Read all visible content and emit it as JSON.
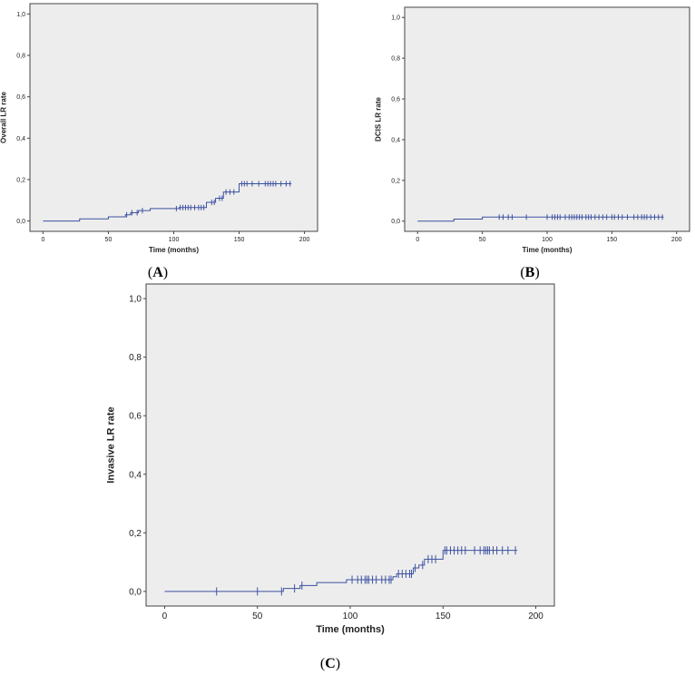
{
  "colors": {
    "plot_bg": "#ededed",
    "line": "#3d52a1",
    "axis": "#444444"
  },
  "panels": [
    {
      "id": "A",
      "open": "(",
      "letter": "A",
      "close": ")"
    },
    {
      "id": "B",
      "open": "(",
      "letter": "B",
      "close": ")"
    },
    {
      "id": "C",
      "open": "(",
      "letter": "C",
      "close": ")"
    }
  ],
  "chart_data": [
    {
      "panel": "A",
      "type": "line",
      "xlabel": "Time (months)",
      "ylabel": "Overall LR rate",
      "xlim": [
        -10,
        210
      ],
      "ylim": [
        -0.05,
        1.05
      ],
      "x_ticks": [
        0,
        50,
        100,
        150,
        200
      ],
      "x_tick_labels": [
        "0",
        "50",
        "100",
        "150",
        "200"
      ],
      "y_ticks": [
        0,
        0.2,
        0.4,
        0.6,
        0.8,
        1.0
      ],
      "y_tick_labels": [
        "0,0",
        "0,2",
        "0,4",
        "0,6",
        "0,8",
        "1,0"
      ],
      "grid": false,
      "steps": [
        [
          0,
          0
        ],
        [
          28,
          0.01
        ],
        [
          50,
          0.02
        ],
        [
          63,
          0.03
        ],
        [
          67,
          0.04
        ],
        [
          73,
          0.05
        ],
        [
          82,
          0.06
        ],
        [
          104,
          0.065
        ],
        [
          125,
          0.09
        ],
        [
          132,
          0.11
        ],
        [
          138,
          0.14
        ],
        [
          150,
          0.18
        ],
        [
          190,
          0.18
        ]
      ],
      "censored": [
        [
          64,
          0.03
        ],
        [
          68,
          0.04
        ],
        [
          72,
          0.04
        ],
        [
          76,
          0.05
        ],
        [
          102,
          0.06
        ],
        [
          105,
          0.065
        ],
        [
          107,
          0.065
        ],
        [
          109,
          0.065
        ],
        [
          111,
          0.065
        ],
        [
          113,
          0.065
        ],
        [
          116,
          0.065
        ],
        [
          119,
          0.065
        ],
        [
          121,
          0.065
        ],
        [
          123,
          0.065
        ],
        [
          129,
          0.09
        ],
        [
          131,
          0.09
        ],
        [
          135,
          0.11
        ],
        [
          137,
          0.11
        ],
        [
          140,
          0.14
        ],
        [
          143,
          0.14
        ],
        [
          146,
          0.14
        ],
        [
          152,
          0.18
        ],
        [
          154,
          0.18
        ],
        [
          156,
          0.18
        ],
        [
          160,
          0.18
        ],
        [
          165,
          0.18
        ],
        [
          170,
          0.18
        ],
        [
          172,
          0.18
        ],
        [
          174,
          0.18
        ],
        [
          176,
          0.18
        ],
        [
          178,
          0.18
        ],
        [
          182,
          0.18
        ],
        [
          186,
          0.18
        ],
        [
          189,
          0.18
        ]
      ]
    },
    {
      "panel": "B",
      "type": "line",
      "xlabel": "Time (months)",
      "ylabel": "DCIS LR rate",
      "xlim": [
        -10,
        210
      ],
      "ylim": [
        -0.05,
        1.05
      ],
      "x_ticks": [
        0,
        50,
        100,
        150,
        200
      ],
      "x_tick_labels": [
        "0",
        "50",
        "100",
        "150",
        "200"
      ],
      "y_ticks": [
        0,
        0.2,
        0.4,
        0.6,
        0.8,
        1.0
      ],
      "y_tick_labels": [
        "0,0",
        "0,2",
        "0,4",
        "0,6",
        "0,8",
        "1,0"
      ],
      "grid": false,
      "steps": [
        [
          0,
          0
        ],
        [
          28,
          0.01
        ],
        [
          50,
          0.02
        ],
        [
          190,
          0.02
        ]
      ],
      "censored": [
        [
          63,
          0.02
        ],
        [
          66,
          0.02
        ],
        [
          70,
          0.02
        ],
        [
          73,
          0.02
        ],
        [
          84,
          0.02
        ],
        [
          100,
          0.02
        ],
        [
          104,
          0.02
        ],
        [
          106,
          0.02
        ],
        [
          108,
          0.02
        ],
        [
          110,
          0.02
        ],
        [
          114,
          0.02
        ],
        [
          117,
          0.02
        ],
        [
          119,
          0.02
        ],
        [
          121,
          0.02
        ],
        [
          123,
          0.02
        ],
        [
          125,
          0.02
        ],
        [
          127,
          0.02
        ],
        [
          130,
          0.02
        ],
        [
          132,
          0.02
        ],
        [
          134,
          0.02
        ],
        [
          137,
          0.02
        ],
        [
          140,
          0.02
        ],
        [
          143,
          0.02
        ],
        [
          146,
          0.02
        ],
        [
          150,
          0.02
        ],
        [
          152,
          0.02
        ],
        [
          155,
          0.02
        ],
        [
          158,
          0.02
        ],
        [
          162,
          0.02
        ],
        [
          167,
          0.02
        ],
        [
          170,
          0.02
        ],
        [
          173,
          0.02
        ],
        [
          175,
          0.02
        ],
        [
          177,
          0.02
        ],
        [
          180,
          0.02
        ],
        [
          183,
          0.02
        ],
        [
          186,
          0.02
        ],
        [
          189,
          0.02
        ]
      ]
    },
    {
      "panel": "C",
      "type": "line",
      "xlabel": "Time (months)",
      "ylabel": "Invasive LR rate",
      "xlim": [
        -10,
        210
      ],
      "ylim": [
        -0.05,
        1.05
      ],
      "x_ticks": [
        0,
        50,
        100,
        150,
        200
      ],
      "x_tick_labels": [
        "0",
        "50",
        "100",
        "150",
        "200"
      ],
      "y_ticks": [
        0,
        0.2,
        0.4,
        0.6,
        0.8,
        1.0
      ],
      "y_tick_labels": [
        "0,0",
        "0,2",
        "0,4",
        "0,6",
        "0,8",
        "1,0"
      ],
      "grid": false,
      "steps": [
        [
          0,
          0
        ],
        [
          64,
          0.01
        ],
        [
          73,
          0.02
        ],
        [
          82,
          0.03
        ],
        [
          98,
          0.04
        ],
        [
          123,
          0.05
        ],
        [
          125,
          0.06
        ],
        [
          134,
          0.08
        ],
        [
          137,
          0.09
        ],
        [
          140,
          0.11
        ],
        [
          150,
          0.14
        ],
        [
          190,
          0.14
        ]
      ],
      "censored": [
        [
          28,
          0
        ],
        [
          50,
          0
        ],
        [
          63,
          0
        ],
        [
          70,
          0.01
        ],
        [
          74,
          0.02
        ],
        [
          101,
          0.04
        ],
        [
          104,
          0.04
        ],
        [
          106,
          0.04
        ],
        [
          108,
          0.04
        ],
        [
          109,
          0.04
        ],
        [
          110,
          0.04
        ],
        [
          112,
          0.04
        ],
        [
          114,
          0.04
        ],
        [
          117,
          0.04
        ],
        [
          119,
          0.04
        ],
        [
          121,
          0.04
        ],
        [
          122,
          0.04
        ],
        [
          126,
          0.06
        ],
        [
          128,
          0.06
        ],
        [
          130,
          0.06
        ],
        [
          132,
          0.06
        ],
        [
          133,
          0.06
        ],
        [
          135,
          0.08
        ],
        [
          139,
          0.09
        ],
        [
          142,
          0.11
        ],
        [
          144,
          0.11
        ],
        [
          146,
          0.11
        ],
        [
          151,
          0.14
        ],
        [
          152,
          0.14
        ],
        [
          154,
          0.14
        ],
        [
          156,
          0.14
        ],
        [
          158,
          0.14
        ],
        [
          160,
          0.14
        ],
        [
          162,
          0.14
        ],
        [
          167,
          0.14
        ],
        [
          170,
          0.14
        ],
        [
          172,
          0.14
        ],
        [
          173,
          0.14
        ],
        [
          174,
          0.14
        ],
        [
          175,
          0.14
        ],
        [
          177,
          0.14
        ],
        [
          179,
          0.14
        ],
        [
          182,
          0.14
        ],
        [
          185,
          0.14
        ],
        [
          189,
          0.14
        ]
      ]
    }
  ]
}
